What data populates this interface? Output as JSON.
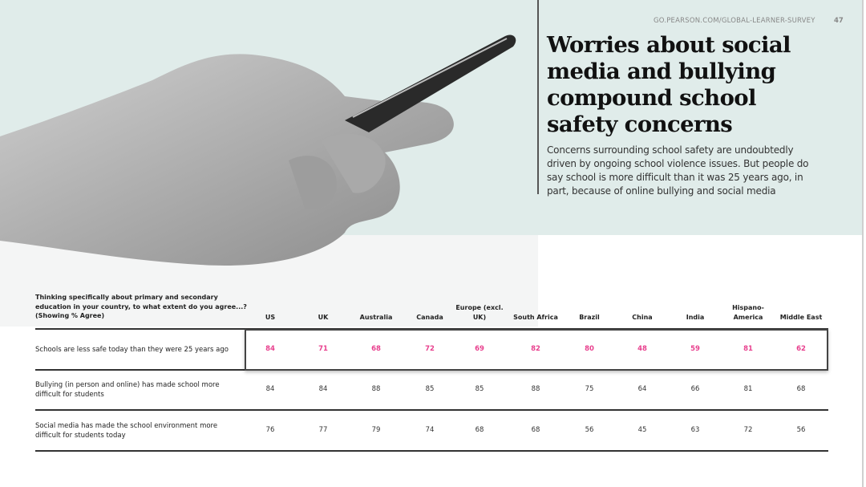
{
  "header": {
    "url": "GO.PEARSON.COM/GLOBAL-LEARNER-SURVEY",
    "page_number": "47"
  },
  "title": "Worries about social media and bullying compound school safety concerns",
  "intro": "Concerns surrounding school safety are undoubtedly driven by ongoing school violence issues. But people do say school is more difficult than it was 25 years ago, in part, because of online bullying and social media",
  "table": {
    "question": "Thinking specifically about primary and secondary education in your country, to what extent do you agree...? (Showing % Agree)",
    "columns": [
      "US",
      "UK",
      "Australia",
      "Canada",
      "Europe (excl. UK)",
      "South Africa",
      "Brazil",
      "China",
      "India",
      "Hispano-America",
      "Middle East"
    ],
    "rows": [
      {
        "label": "Schools are less safe today than they were 25 years ago",
        "highlighted": true,
        "values": [
          "84",
          "71",
          "68",
          "72",
          "69",
          "82",
          "80",
          "48",
          "59",
          "81",
          "62"
        ]
      },
      {
        "label": "Bullying (in person and online) has made school more difficult for students",
        "highlighted": false,
        "values": [
          "84",
          "84",
          "88",
          "85",
          "85",
          "88",
          "75",
          "64",
          "66",
          "81",
          "68"
        ]
      },
      {
        "label": "Social media has made the school environment more difficult for students today",
        "highlighted": false,
        "values": [
          "76",
          "77",
          "79",
          "74",
          "68",
          "68",
          "56",
          "45",
          "63",
          "72",
          "56"
        ]
      }
    ]
  },
  "colors": {
    "mint": "#e0ecea",
    "highlight": "#e8408e"
  }
}
